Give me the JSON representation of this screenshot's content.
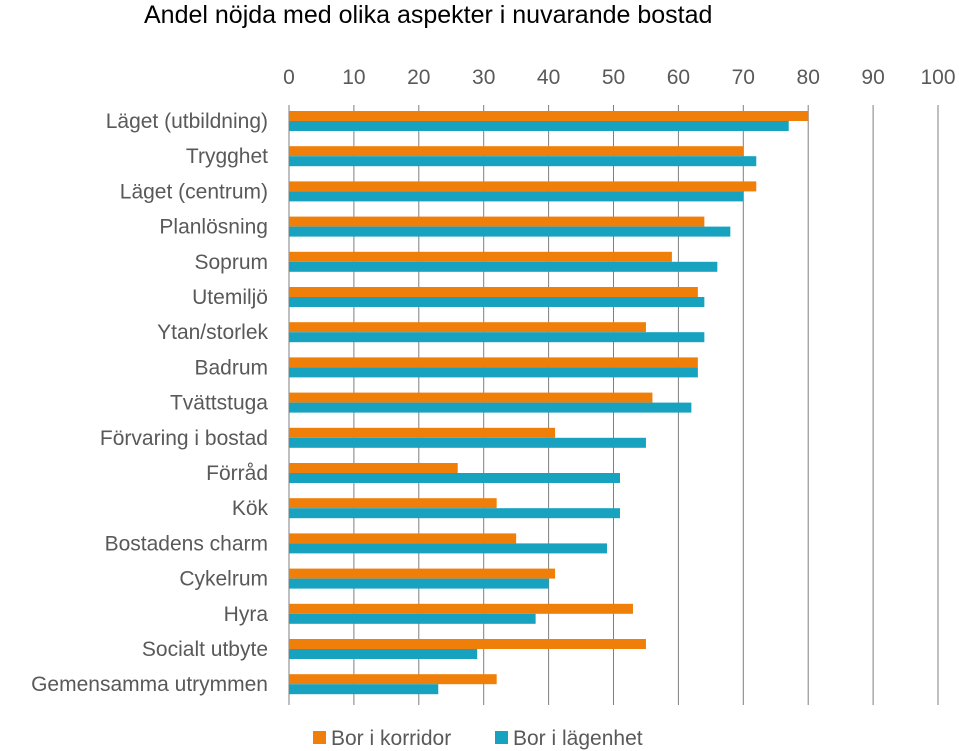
{
  "chart_data": {
    "type": "bar",
    "orientation": "horizontal",
    "title": "Andel nöjda med olika aspekter i nuvarande bostad",
    "xlim": [
      0,
      100
    ],
    "xticks": [
      "0",
      "10",
      "20",
      "30",
      "40",
      "50",
      "60",
      "70",
      "80",
      "90",
      "100"
    ],
    "x_axis_position": "top",
    "grid": true,
    "legend_position": "bottom",
    "categories": [
      "Läget (utbildning)",
      "Trygghet",
      "Läget (centrum)",
      "Planlösning",
      "Soprum",
      "Utemiljö",
      "Ytan/storlek",
      "Badrum",
      "Tvättstuga",
      "Förvaring i bostad",
      "Förråd",
      "Kök",
      "Bostadens charm",
      "Cykelrum",
      "Hyra",
      "Socialt utbyte",
      "Gemensamma utrymmen"
    ],
    "series": [
      {
        "name": "Bor i korridor",
        "color": "#F07F09",
        "values": [
          80,
          70,
          72,
          64,
          59,
          63,
          55,
          63,
          56,
          41,
          26,
          32,
          35,
          41,
          53,
          55,
          32
        ]
      },
      {
        "name": "Bor i lägenhet",
        "color": "#17A2C0",
        "values": [
          77,
          72,
          70,
          68,
          66,
          64,
          64,
          63,
          62,
          55,
          51,
          51,
          49,
          40,
          38,
          29,
          23
        ]
      }
    ]
  }
}
